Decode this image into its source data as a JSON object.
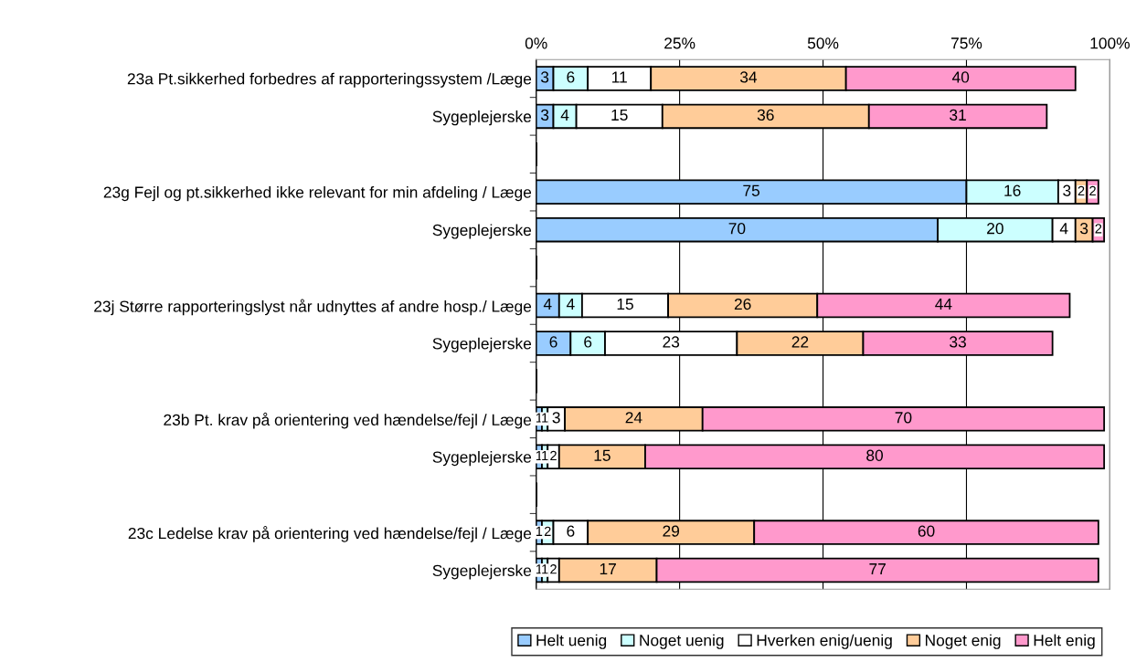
{
  "chart_data": {
    "type": "bar",
    "orientation": "horizontal",
    "stacked": true,
    "data_labels": true,
    "categories": [
      "23a Pt.sikkerhed forbedres af rapporteringssystem /Læge",
      "Sygeplejerske",
      null,
      "23g Fejl og pt.sikkerhed ikke relevant for min afdeling / Læge",
      "Sygeplejerske",
      null,
      "23j Større rapporteringslyst når udnyttes af andre hosp./ Læge",
      "Sygeplejerske",
      null,
      "23b Pt. krav på orientering ved hændelse/fejl / Læge",
      "Sygeplejerske",
      null,
      "23c Ledelse krav på orientering ved hændelse/fejl / Læge",
      "Sygeplejerske"
    ],
    "series": [
      {
        "name": "Helt uenig",
        "color": "#99ccff",
        "values": [
          3,
          3,
          null,
          75,
          70,
          null,
          4,
          6,
          null,
          1,
          1,
          null,
          1,
          1
        ]
      },
      {
        "name": "Noget uenig",
        "color": "#ccffff",
        "values": [
          6,
          4,
          null,
          16,
          20,
          null,
          4,
          6,
          null,
          1,
          1,
          null,
          2,
          1
        ]
      },
      {
        "name": "Hverken enig/uenig",
        "color": "#ffffff",
        "values": [
          11,
          15,
          null,
          3,
          4,
          null,
          15,
          23,
          null,
          3,
          2,
          null,
          6,
          2
        ]
      },
      {
        "name": "Noget enig",
        "color": "#ffcc99",
        "values": [
          34,
          36,
          null,
          2,
          3,
          null,
          26,
          22,
          null,
          24,
          15,
          null,
          29,
          17
        ]
      },
      {
        "name": "Helt enig",
        "color": "#ff99cc",
        "values": [
          40,
          31,
          null,
          2,
          2,
          null,
          44,
          33,
          null,
          70,
          80,
          null,
          60,
          77
        ]
      }
    ],
    "xlim": [
      0,
      100
    ],
    "xticks": [
      {
        "value": 0,
        "label": "0%"
      },
      {
        "value": 25,
        "label": "25%"
      },
      {
        "value": 50,
        "label": "50%"
      },
      {
        "value": 75,
        "label": "75%"
      },
      {
        "value": 100,
        "label": "100%"
      }
    ],
    "grid": "x",
    "legend": "bottom"
  }
}
